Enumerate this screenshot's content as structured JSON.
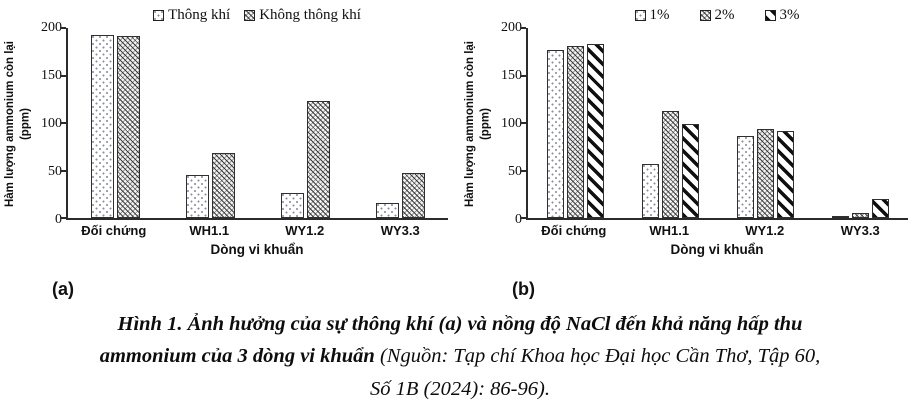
{
  "chart_data": [
    {
      "id": "a",
      "type": "bar",
      "panel_label": "(a)",
      "categories": [
        "Đối chứng",
        "WH1.1",
        "WY1.2",
        "WY3.3"
      ],
      "series": [
        {
          "name": "Thông khí",
          "pattern": "dots",
          "values": [
            193,
            45,
            26,
            16
          ]
        },
        {
          "name": "Không thông khí",
          "pattern": "finehatch",
          "values": [
            192,
            68,
            123,
            47
          ]
        }
      ],
      "xlabel": "Dòng vi khuẩn",
      "ylabel": "Hàm lượng ammonium còn lại",
      "ylabel2": "(ppm)",
      "ylim": [
        0,
        200
      ],
      "y_ticks": [
        0,
        50,
        100,
        150,
        200
      ],
      "grid": "off",
      "legend_position": "top"
    },
    {
      "id": "b",
      "type": "bar",
      "panel_label": "(b)",
      "categories": [
        "Đối chứng",
        "WH1.1",
        "WY1.2",
        "WY3.3"
      ],
      "series": [
        {
          "name": "1%",
          "pattern": "dots",
          "values": [
            177,
            57,
            86,
            1
          ]
        },
        {
          "name": "2%",
          "pattern": "finehatch",
          "values": [
            181,
            113,
            94,
            5
          ]
        },
        {
          "name": "3%",
          "pattern": "boldhatch",
          "values": [
            183,
            99,
            92,
            20
          ]
        }
      ],
      "xlabel": "Dòng vi khuẩn",
      "ylabel": "Hàm lượng ammonium còn lại",
      "ylabel2": "(ppm)",
      "ylim": [
        0,
        200
      ],
      "y_ticks": [
        0,
        50,
        100,
        150,
        200
      ],
      "grid": "off",
      "legend_position": "top"
    }
  ],
  "caption": {
    "part1_bold": "Hình 1. Ảnh hưởng của sự thông khí (a) và nồng độ NaCl đến khả năng hấp thu",
    "part2_bold": "ammonium của 3 dòng vi khuẩn",
    "part2_regular": " (Nguồn: Tạp chí Khoa học Đại học Cần Thơ, Tập 60,",
    "part3_regular": "Số 1B (2024): 86-96)."
  },
  "colors": {
    "background": "#ffffff",
    "axis": "#2b2b2b",
    "text": "#111111",
    "dot_fill": "#8b8ba6",
    "hatch_fill": "#2d2d2d"
  }
}
